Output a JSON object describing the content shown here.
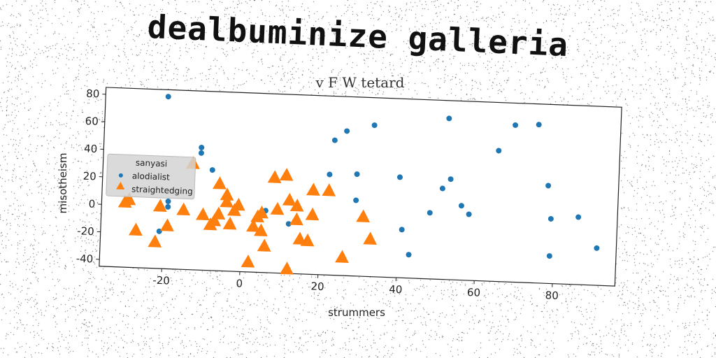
{
  "title": "dealbuminize galleria",
  "subtitle": "v F W tetard",
  "chart_data": {
    "type": "scatter",
    "xlabel": "strummers",
    "ylabel": "misotheism",
    "xlim": [
      -36,
      96
    ],
    "ylim": [
      -45,
      85
    ],
    "xticks": [
      -20,
      0,
      20,
      40,
      60,
      80
    ],
    "yticks": [
      -40,
      -20,
      0,
      20,
      40,
      60,
      80
    ],
    "legend": {
      "title": "sanyasi",
      "placement": "center-left"
    },
    "series": [
      {
        "name": "alodialist",
        "marker": "circle",
        "color": "#1f77b4",
        "points": [
          [
            -20,
            80
          ],
          [
            -11,
            44
          ],
          [
            -11,
            40
          ],
          [
            -8,
            28
          ],
          [
            -19,
            4
          ],
          [
            -19,
            0
          ],
          [
            -21,
            -18
          ],
          [
            6,
            0
          ],
          [
            12,
            -9
          ],
          [
            22,
            28
          ],
          [
            23,
            53
          ],
          [
            26,
            60
          ],
          [
            29,
            29
          ],
          [
            29,
            10
          ],
          [
            33,
            65
          ],
          [
            40,
            28
          ],
          [
            41,
            -10
          ],
          [
            43,
            -28
          ],
          [
            48,
            3
          ],
          [
            51,
            21
          ],
          [
            52,
            72
          ],
          [
            53,
            28
          ],
          [
            56,
            9
          ],
          [
            58,
            3
          ],
          [
            65,
            50
          ],
          [
            69,
            69
          ],
          [
            75,
            70
          ],
          [
            78,
            26
          ],
          [
            79,
            2
          ],
          [
            79,
            -25
          ],
          [
            86,
            4
          ],
          [
            91,
            -18
          ]
        ]
      },
      {
        "name": "straightedging",
        "marker": "triangle",
        "color": "#ff7f0e",
        "points": [
          [
            -30,
            2
          ],
          [
            -29,
            4
          ],
          [
            -27,
            -18
          ],
          [
            -22,
            -26
          ],
          [
            -21,
            0
          ],
          [
            -19,
            -14
          ],
          [
            -15,
            -2
          ],
          [
            -13,
            32
          ],
          [
            -10,
            -5
          ],
          [
            -8,
            -12
          ],
          [
            -7,
            -9
          ],
          [
            -6,
            18
          ],
          [
            -6,
            -4
          ],
          [
            -4,
            10
          ],
          [
            -4,
            5
          ],
          [
            -3,
            -11
          ],
          [
            -2,
            -1
          ],
          [
            -1,
            3
          ],
          [
            2,
            -38
          ],
          [
            3,
            -12
          ],
          [
            4,
            -5
          ],
          [
            5,
            -2
          ],
          [
            5,
            -15
          ],
          [
            6,
            -26
          ],
          [
            8,
            24
          ],
          [
            9,
            1
          ],
          [
            11,
            26
          ],
          [
            12,
            8
          ],
          [
            12,
            -42
          ],
          [
            14,
            4
          ],
          [
            14,
            -6
          ],
          [
            15,
            -20
          ],
          [
            17,
            -21
          ],
          [
            18,
            -2
          ],
          [
            18,
            16
          ],
          [
            22,
            16
          ],
          [
            26,
            -32
          ],
          [
            31,
            -2
          ],
          [
            33,
            -18
          ]
        ]
      }
    ]
  }
}
